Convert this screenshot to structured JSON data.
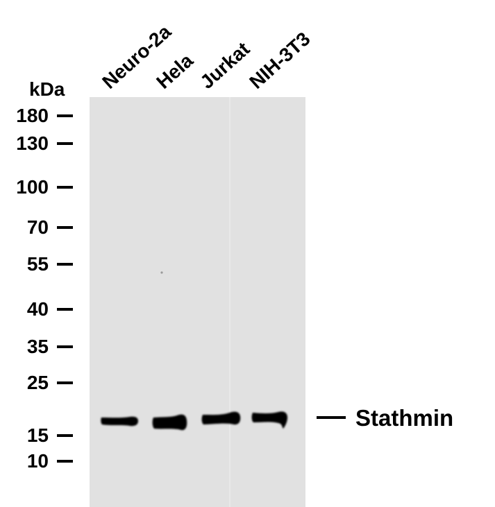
{
  "units_label": "kDa",
  "lanes": [
    {
      "label": "Neuro-2a"
    },
    {
      "label": "Hela"
    },
    {
      "label": "Jurkat"
    },
    {
      "label": "NIH-3T3"
    }
  ],
  "markers": [
    {
      "label": "180"
    },
    {
      "label": "130"
    },
    {
      "label": "100"
    },
    {
      "label": "70"
    },
    {
      "label": "55"
    },
    {
      "label": "40"
    },
    {
      "label": "35"
    },
    {
      "label": "25"
    },
    {
      "label": "15"
    },
    {
      "label": "10"
    }
  ],
  "target": {
    "label": "Stathmin"
  },
  "colors": {
    "membrane": "#e1e1e1",
    "band": "#000000",
    "text": "#000000"
  }
}
